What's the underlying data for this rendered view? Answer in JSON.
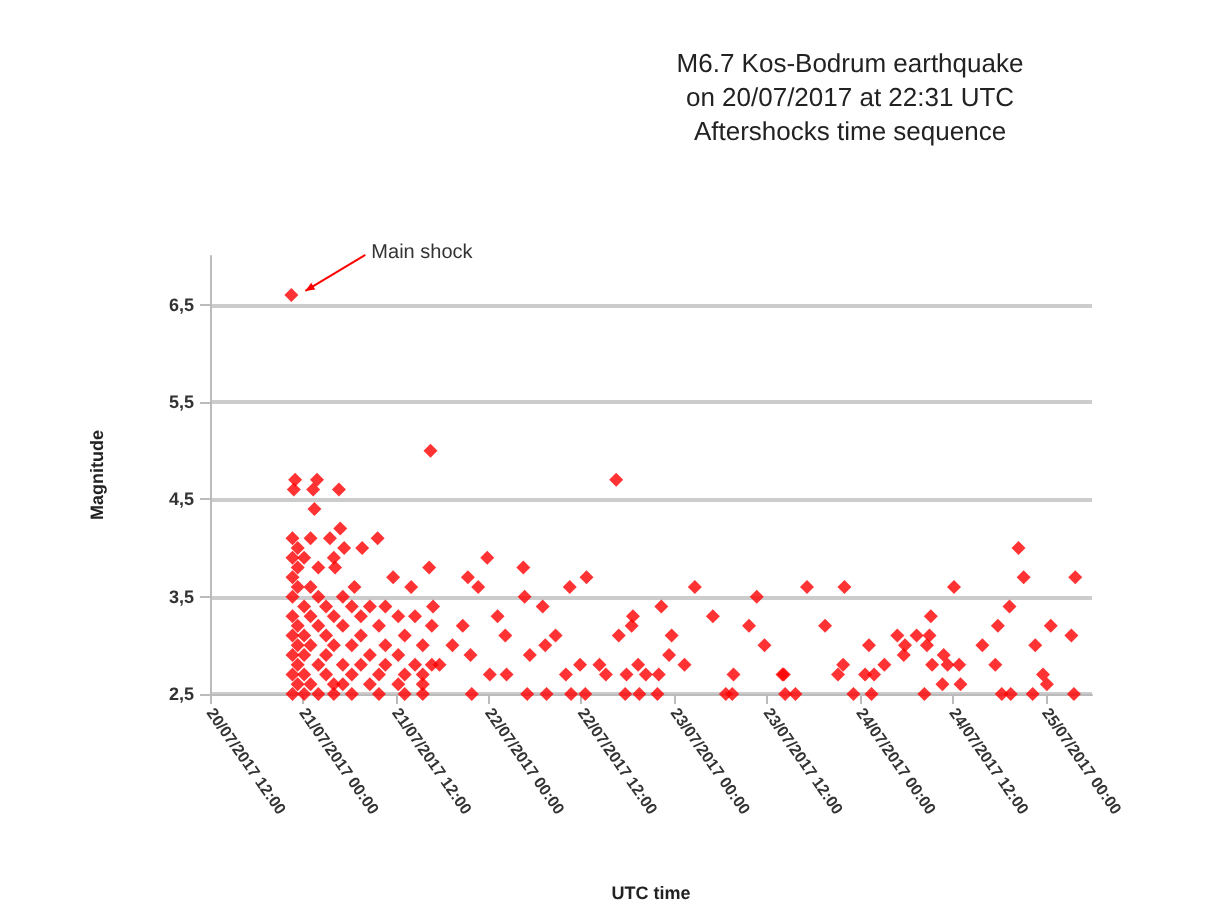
{
  "chart_data": {
    "type": "scatter",
    "title": "M6.7 Kos-Bodrum earthquake\non 20/07/2017 at 22:31 UTC",
    "subtitle": "Aftershocks time sequence",
    "xlabel": "UTC time",
    "ylabel": "Magnitude",
    "marker": "diamond",
    "grid": "y",
    "xlim": [
      "2017-07-20T12:00",
      "2017-07-25T06:00"
    ],
    "xticks": [
      {
        "value": "2017-07-20T12:00",
        "label": "20/07/2017 12:00"
      },
      {
        "value": "2017-07-21T00:00",
        "label": "21/07/2017 00:00"
      },
      {
        "value": "2017-07-21T12:00",
        "label": "21/07/2017 12:00"
      },
      {
        "value": "2017-07-22T00:00",
        "label": "22/07/2017 00:00"
      },
      {
        "value": "2017-07-22T12:00",
        "label": "22/07/2017 12:00"
      },
      {
        "value": "2017-07-23T00:00",
        "label": "23/07/2017 00:00"
      },
      {
        "value": "2017-07-23T12:00",
        "label": "23/07/2017 12:00"
      },
      {
        "value": "2017-07-24T00:00",
        "label": "24/07/2017 00:00"
      },
      {
        "value": "2017-07-24T12:00",
        "label": "24/07/2017 12:00"
      },
      {
        "value": "2017-07-25T00:00",
        "label": "25/07/2017 00:00"
      }
    ],
    "ylim": [
      2.5,
      7
    ],
    "yticks": [
      {
        "value": 2.5,
        "label": "2,5"
      },
      {
        "value": 3.5,
        "label": "3,5"
      },
      {
        "value": 4.5,
        "label": "4,5"
      },
      {
        "value": 5.5,
        "label": "5,5"
      },
      {
        "value": 6.5,
        "label": "6,5"
      }
    ],
    "annotations": [
      {
        "text": "Main shock",
        "x": "2017-07-20T22:31",
        "y": 6.6
      }
    ],
    "series": [
      {
        "color": "#ff0000",
        "x": [
          "2017-07-20T22:31",
          "2017-07-20T22:50",
          "2017-07-20T23:00",
          "2017-07-21T01:20",
          "2017-07-21T01:50",
          "2017-07-21T01:30",
          "2017-07-21T04:40",
          "2017-07-21T04:50",
          "2017-07-21T03:30",
          "2017-07-21T05:20",
          "2017-07-21T07:40",
          "2017-07-21T09:40",
          "2017-07-21T04:10",
          "2017-07-21T16:30",
          "2017-07-21T16:20",
          "2017-07-21T11:40",
          "2017-07-21T14:00",
          "2017-07-21T06:40",
          "2017-07-21T16:50",
          "2017-07-20T22:40",
          "2017-07-20T22:40",
          "2017-07-20T22:40",
          "2017-07-20T22:40",
          "2017-07-20T22:40",
          "2017-07-20T22:40",
          "2017-07-20T22:40",
          "2017-07-20T22:40",
          "2017-07-20T22:40",
          "2017-07-20T23:20",
          "2017-07-20T23:20",
          "2017-07-20T23:20",
          "2017-07-20T23:20",
          "2017-07-20T23:20",
          "2017-07-20T23:20",
          "2017-07-20T23:20",
          "2017-07-21T00:10",
          "2017-07-21T00:10",
          "2017-07-21T00:10",
          "2017-07-21T00:10",
          "2017-07-21T00:10",
          "2017-07-21T00:10",
          "2017-07-21T01:00",
          "2017-07-21T01:00",
          "2017-07-21T01:00",
          "2017-07-21T01:00",
          "2017-07-21T01:00",
          "2017-07-21T02:00",
          "2017-07-21T02:00",
          "2017-07-21T02:00",
          "2017-07-21T02:00",
          "2017-07-21T02:00",
          "2017-07-21T03:00",
          "2017-07-21T03:00",
          "2017-07-21T03:00",
          "2017-07-21T03:00",
          "2017-07-21T04:00",
          "2017-07-21T04:00",
          "2017-07-21T04:00",
          "2017-07-21T04:00",
          "2017-07-21T04:00",
          "2017-07-21T05:10",
          "2017-07-21T05:10",
          "2017-07-21T05:10",
          "2017-07-21T05:10",
          "2017-07-21T06:20",
          "2017-07-21T06:20",
          "2017-07-21T06:20",
          "2017-07-21T06:20",
          "2017-07-21T07:30",
          "2017-07-21T07:30",
          "2017-07-21T07:30",
          "2017-07-21T08:40",
          "2017-07-21T08:40",
          "2017-07-21T08:40",
          "2017-07-21T09:50",
          "2017-07-21T09:50",
          "2017-07-21T09:50",
          "2017-07-21T10:40",
          "2017-07-21T10:40",
          "2017-07-21T10:40",
          "2017-07-21T12:20",
          "2017-07-21T12:20",
          "2017-07-21T12:20",
          "2017-07-21T13:10",
          "2017-07-21T13:10",
          "2017-07-21T13:10",
          "2017-07-21T14:30",
          "2017-07-21T14:30",
          "2017-07-21T15:30",
          "2017-07-21T15:30",
          "2017-07-21T15:30",
          "2017-07-21T15:30",
          "2017-07-21T16:40",
          "2017-07-21T16:40",
          "2017-07-21T23:50",
          "2017-07-21T21:20",
          "2017-07-21T22:40",
          "2017-07-22T04:30",
          "2017-07-22T04:40",
          "2017-07-22T07:00",
          "2017-07-22T10:30",
          "2017-07-22T12:40",
          "2017-07-22T16:30",
          "2017-07-22T18:40",
          "2017-07-22T22:20",
          "2017-07-23T02:40",
          "2017-07-23T05:00",
          "2017-07-23T10:40",
          "2017-07-23T09:40",
          "2017-07-23T11:40",
          "2017-07-21T20:40",
          "2017-07-22T01:10",
          "2017-07-22T02:10",
          "2017-07-21T19:20",
          "2017-07-22T07:20",
          "2017-07-22T08:40",
          "2017-07-22T18:30",
          "2017-07-22T16:50",
          "2017-07-22T19:20",
          "2017-07-22T23:40",
          "2017-07-22T23:20",
          "2017-07-23T01:20",
          "2017-07-21T21:50",
          "2017-07-22T05:00",
          "2017-07-22T07:30",
          "2017-07-22T10:40",
          "2017-07-22T12:30",
          "2017-07-22T17:40",
          "2017-07-22T19:30",
          "2017-07-22T21:50",
          "2017-07-23T06:40",
          "2017-07-23T07:30",
          "2017-07-23T14:20",
          "2017-07-21T17:40",
          "2017-07-21T21:40",
          "2017-07-22T00:10",
          "2017-07-22T02:20",
          "2017-07-22T05:20",
          "2017-07-22T10:00",
          "2017-07-22T11:50",
          "2017-07-22T14:20",
          "2017-07-22T15:10",
          "2017-07-22T17:50",
          "2017-07-22T20:20",
          "2017-07-22T22:00",
          "2017-07-23T07:40",
          "2017-07-23T14:10",
          "2017-07-23T17:10",
          "2017-07-23T22:00",
          "2017-07-23T19:30",
          "2017-07-23T21:50",
          "2017-07-23T21:10",
          "2017-07-24T01:10",
          "2017-07-24T03:10",
          "2017-07-24T04:50",
          "2017-07-24T05:50",
          "2017-07-24T05:40",
          "2017-07-24T07:20",
          "2017-07-24T09:10",
          "2017-07-24T08:40",
          "2017-07-24T09:00",
          "2017-07-24T12:10",
          "2017-07-24T10:50",
          "2017-07-24T09:20",
          "2017-07-24T11:20",
          "2017-07-24T12:50",
          "2017-07-24T13:00",
          "2017-07-24T10:40",
          "2017-07-24T15:50",
          "2017-07-24T17:30",
          "2017-07-24T17:50",
          "2017-07-24T19:20",
          "2017-07-24T20:30",
          "2017-07-24T21:10",
          "2017-07-24T22:40",
          "2017-07-24T23:40",
          "2017-07-25T00:10",
          "2017-07-25T00:40",
          "2017-07-25T03:20",
          "2017-07-25T03:50",
          "2017-07-23T15:40",
          "2017-07-23T23:10",
          "2017-07-24T01:30",
          "2017-07-24T08:20",
          "2017-07-24T18:20",
          "2017-07-24T19:30",
          "2017-07-24T22:20",
          "2017-07-25T03:40",
          "2017-07-23T14:00",
          "2017-07-24T00:40",
          "2017-07-24T01:50"
        ],
        "values": [
          6.6,
          4.6,
          4.7,
          4.6,
          4.7,
          4.4,
          4.6,
          4.2,
          4.1,
          4.0,
          4.0,
          4.1,
          3.8,
          5.0,
          3.8,
          3.7,
          3.6,
          3.6,
          3.4,
          4.1,
          3.9,
          3.7,
          3.5,
          3.3,
          3.1,
          2.9,
          2.7,
          2.5,
          4.0,
          3.8,
          3.6,
          3.2,
          3.0,
          2.8,
          2.6,
          3.9,
          3.4,
          3.1,
          2.9,
          2.7,
          2.5,
          4.1,
          3.6,
          3.3,
          3.0,
          2.6,
          3.8,
          3.5,
          3.2,
          2.8,
          2.5,
          3.4,
          3.1,
          2.9,
          2.7,
          3.9,
          3.3,
          3.0,
          2.6,
          2.5,
          3.5,
          3.2,
          2.8,
          2.6,
          3.4,
          3.0,
          2.7,
          2.5,
          3.3,
          3.1,
          2.8,
          3.4,
          2.9,
          2.6,
          3.2,
          2.7,
          2.5,
          3.4,
          3.0,
          2.8,
          3.3,
          2.9,
          2.6,
          3.1,
          2.7,
          2.5,
          3.3,
          2.8,
          3.0,
          2.7,
          2.6,
          2.5,
          3.2,
          2.8,
          3.9,
          3.7,
          3.6,
          3.8,
          3.5,
          3.4,
          3.6,
          3.7,
          4.7,
          3.3,
          3.4,
          3.6,
          3.3,
          3.5,
          3.2,
          3.0,
          3.2,
          3.3,
          3.1,
          3.0,
          3.0,
          3.1,
          3.2,
          3.1,
          2.8,
          3.1,
          2.9,
          2.8,
          2.5,
          2.5,
          2.5,
          2.5,
          2.5,
          2.5,
          2.5,
          2.5,
          2.5,
          2.5,
          2.5,
          2.8,
          2.9,
          2.7,
          2.7,
          2.9,
          2.7,
          2.8,
          2.8,
          2.7,
          2.7,
          2.7,
          2.7,
          2.7,
          2.7,
          3.6,
          3.6,
          3.2,
          2.8,
          2.7,
          3.0,
          2.8,
          3.1,
          3.0,
          2.9,
          3.1,
          3.3,
          3.0,
          3.1,
          3.6,
          2.9,
          2.8,
          2.8,
          2.8,
          2.6,
          2.6,
          3.0,
          2.8,
          3.2,
          3.4,
          4.0,
          3.7,
          3.0,
          2.7,
          2.6,
          3.2,
          3.1,
          3.7,
          2.5,
          2.5,
          2.5,
          2.5,
          2.5,
          2.5,
          2.5,
          2.5,
          2.7,
          2.7,
          2.7
        ]
      }
    ]
  }
}
